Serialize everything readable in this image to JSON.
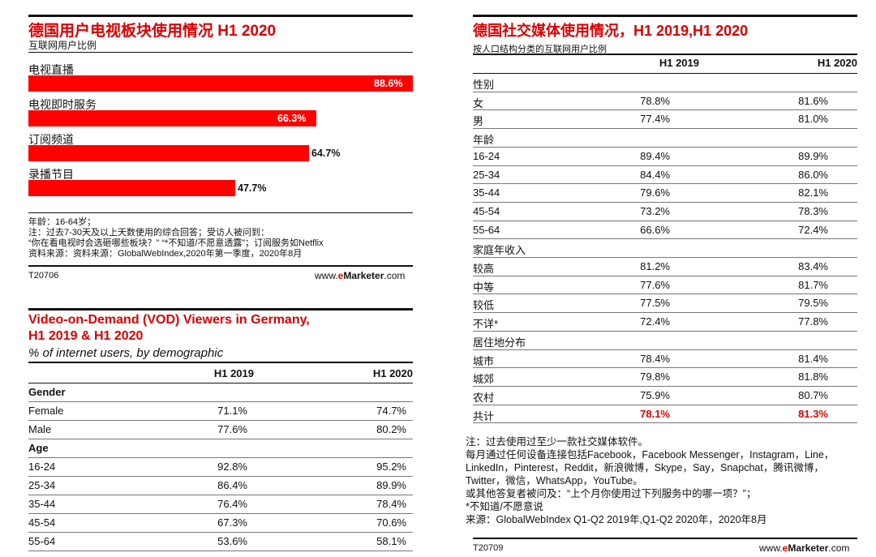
{
  "tv_chart": {
    "title": "德国用户电视板块使用情况 H1 2020",
    "subtitle": "互联网用户比例",
    "notes": [
      "年龄：16-64岁；",
      "注：过去7-30天及以上天数使用的综合回答；受访人被问到：",
      "“你在看电视时会选砸哪些板块？”  “*不知道/不愿意透露”；订阅服务如Netflix",
      "资料来源：资料来源：GlobalWebIndex,2020年第一季度，2020年8月"
    ],
    "code": "T20706"
  },
  "chart_data": {
    "type": "bar",
    "orientation": "horizontal",
    "title": "德国用户电视板块使用情况 H1 2020",
    "subtitle": "互联网用户比例",
    "categories": [
      "电视直播",
      "电视即时服务",
      "订阅频道",
      "录播节目"
    ],
    "values": [
      88.6,
      66.3,
      64.7,
      47.7
    ],
    "value_labels": [
      "88.6%",
      "66.3%",
      "64.7%",
      "47.7%"
    ],
    "unit": "%",
    "xlim": [
      0,
      88.6
    ]
  },
  "vod": {
    "title_line1": "Video-on-Demand (VOD) Viewers in Germany,",
    "title_line2": "H1 2019 & H1 2020",
    "subtitle": "% of internet users, by demographic",
    "col1": "H1 2019",
    "col2": "H1 2020",
    "rows": [
      {
        "label": "Gender",
        "section": true
      },
      {
        "label": "Female",
        "v1": "71.1%",
        "v2": "74.7%"
      },
      {
        "label": "Male",
        "v1": "77.6%",
        "v2": "80.2%"
      },
      {
        "label": "Age",
        "section": true
      },
      {
        "label": "16-24",
        "v1": "92.8%",
        "v2": "95.2%"
      },
      {
        "label": "25-34",
        "v1": "86.4%",
        "v2": "89.9%"
      },
      {
        "label": "35-44",
        "v1": "76.4%",
        "v2": "78.4%"
      },
      {
        "label": "45-54",
        "v1": "67.3%",
        "v2": "70.6%"
      },
      {
        "label": "55-64",
        "v1": "53.6%",
        "v2": "58.1%"
      }
    ]
  },
  "social": {
    "title": "德国社交媒体使用情况，H1 2019,H1 2020",
    "subtitle": "按人口结构分类的互联网用户比例",
    "col1": "H1 2019",
    "col2": "H1 2020",
    "rows": [
      {
        "label": "性别",
        "section": true
      },
      {
        "label": "女",
        "v1": "78.8%",
        "v2": "81.6%"
      },
      {
        "label": "男",
        "v1": "77.4%",
        "v2": "81.0%"
      },
      {
        "label": "年龄",
        "section": true
      },
      {
        "label": "16-24",
        "v1": "89.4%",
        "v2": "89.9%"
      },
      {
        "label": "25-34",
        "v1": "84.4%",
        "v2": "86.0%"
      },
      {
        "label": "35-44",
        "v1": "79.6%",
        "v2": "82.1%"
      },
      {
        "label": "45-54",
        "v1": "73.2%",
        "v2": "78.3%"
      },
      {
        "label": "55-64",
        "v1": "66.6%",
        "v2": "72.4%"
      },
      {
        "label": "家庭年收入",
        "section": true
      },
      {
        "label": "较高",
        "v1": "81.2%",
        "v2": "83.4%"
      },
      {
        "label": "中等",
        "v1": "77.6%",
        "v2": "81.7%"
      },
      {
        "label": "较低",
        "v1": "77.5%",
        "v2": "79.5%"
      },
      {
        "label": "不详*",
        "v1": "72.4%",
        "v2": "77.8%"
      },
      {
        "label": "居住地分布",
        "section": true
      },
      {
        "label": "城市",
        "v1": "78.4%",
        "v2": "81.4%"
      },
      {
        "label": "城郊",
        "v1": "79.8%",
        "v2": "81.8%"
      },
      {
        "label": "农村",
        "v1": "75.9%",
        "v2": "80.7%"
      },
      {
        "label": "共计",
        "v1": "78.1%",
        "v2": "81.3%",
        "total": true
      }
    ],
    "notes": [
      "注：过去使用过至少一款社交媒体软件。",
      "每月通过任何设备连接包括Facebook，Facebook Messenger，Instagram，Line，",
      "LinkedIn，Pinterest，Reddit，新浪微博，Skype，Say，Snapchat，腾讯微博，",
      "Twitter，微信，WhatsApp，YouTube。",
      "或其他答复者被问及：“上个月你使用过下列服务中的哪一项？”；",
      "*不知道/不愿意说",
      "来源：GlobalWebIndex Q1-Q2 2019年,Q1-Q2 2020年，2020年8月"
    ],
    "code": "T20709"
  },
  "brand": {
    "prefix": "www.",
    "e": "e",
    "rest": "Marketer",
    "suffix": ".com"
  },
  "colors": {
    "accent": "#ff0000",
    "title_red": "#d90000"
  }
}
